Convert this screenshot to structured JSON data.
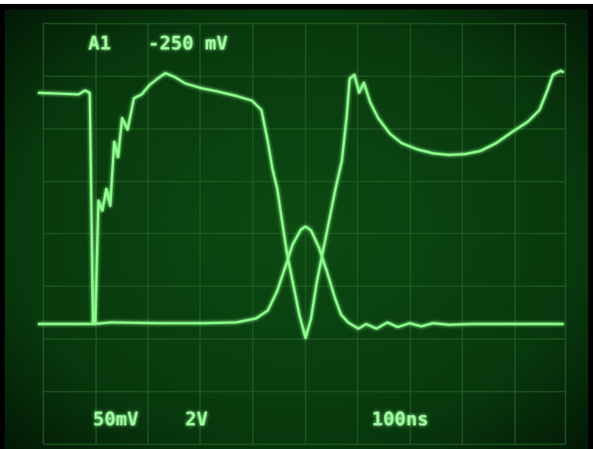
{
  "screen": {
    "channel": "A1",
    "offset": "-250 mV",
    "ch1_scale": "50mV",
    "ch2_scale": "2V",
    "timebase": "100ns"
  }
}
